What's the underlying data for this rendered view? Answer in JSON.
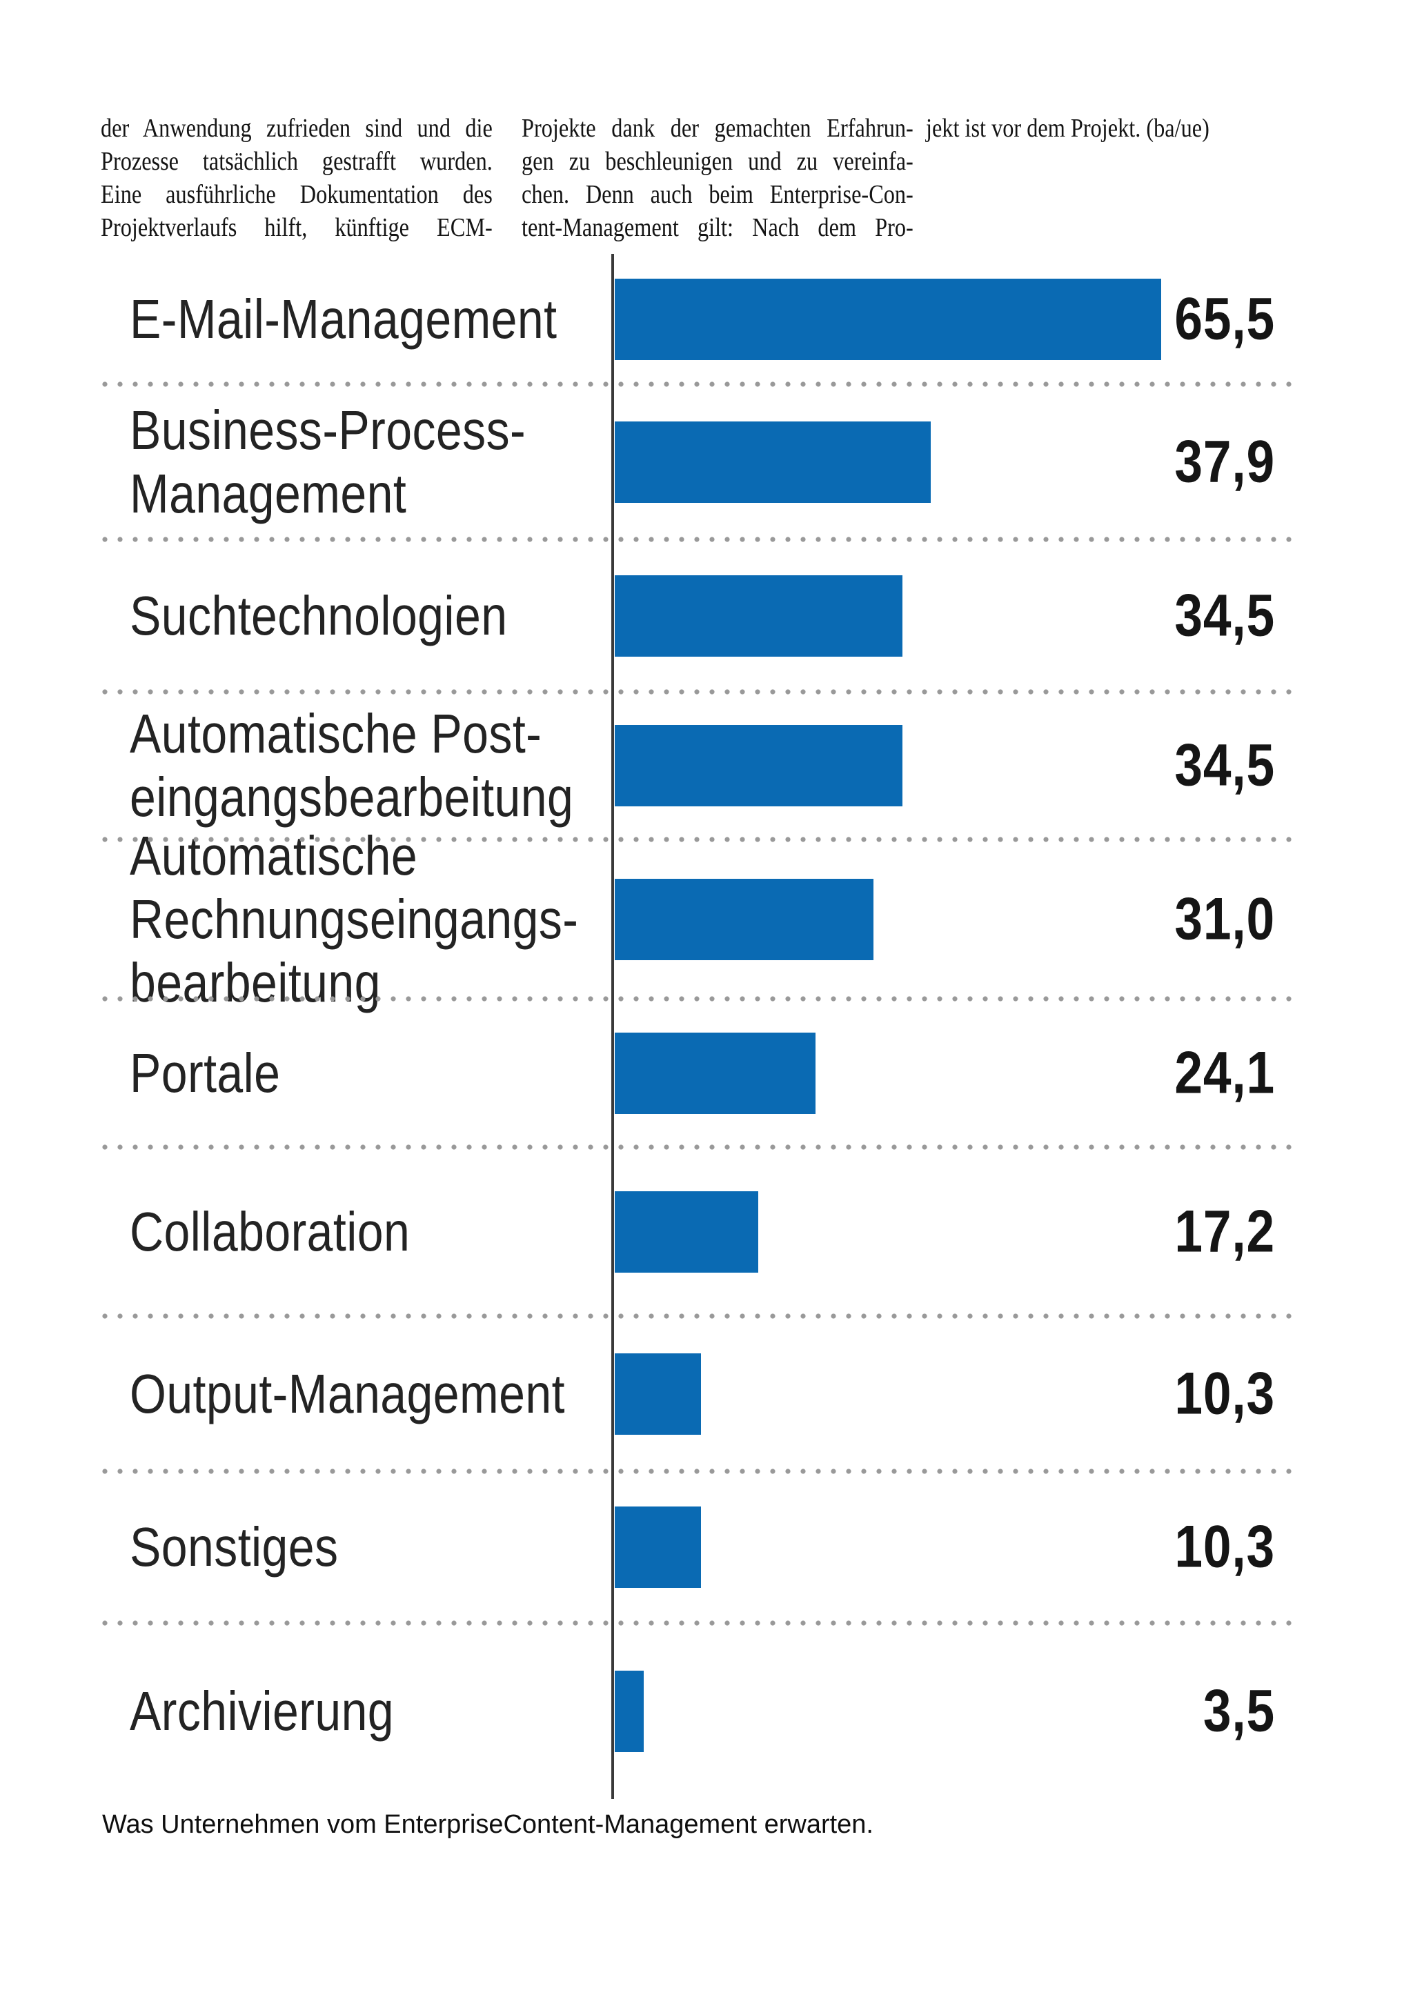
{
  "article": {
    "columns": [
      {
        "lines": [
          "der Anwendung zufrieden sind und die",
          "Prozesse tatsächlich gestrafft wurden.",
          "Eine ausführliche Dokumentation des",
          "Projektverlaufs hilft, künftige ECM-"
        ]
      },
      {
        "lines": [
          "Projekte dank der gemachten Erfahrun-",
          "gen zu beschleunigen und zu vereinfa-",
          "chen. Denn auch beim Enterprise-Con-",
          "tent-Management gilt: Nach dem Pro-"
        ]
      },
      {
        "lines": [
          "jekt ist vor dem Projekt. (ba/ue)"
        ]
      }
    ]
  },
  "chart_data": {
    "type": "bar",
    "orientation": "horizontal",
    "categories": [
      "E-Mail-Management",
      "Business-Process-Management",
      "Suchtechnologien",
      "Automatische Posteingangsbearbeitung",
      "Automatische Rechnungseingangsbearbeitung",
      "Portale",
      "Collaboration",
      "Output-Management",
      "Sonstiges",
      "Archivierung"
    ],
    "label_display": [
      "E-Mail-Management",
      "Business-Process-\nManagement",
      "Suchtechnologien",
      "Automatische Post-\neingangsbearbeitung",
      "Automatische\nRechnungseingangs-\nbearbeitung",
      "Portale",
      "Collaboration",
      "Output-Management",
      "Sonstiges",
      "Archivierung"
    ],
    "values": [
      65.5,
      37.9,
      34.5,
      34.5,
      31.0,
      24.1,
      17.2,
      10.3,
      10.3,
      3.5
    ],
    "value_labels": [
      "65,5",
      "37,9",
      "34,5",
      "34,5",
      "31,0",
      "24,1",
      "17,2",
      "10,3",
      "10,3",
      "3,5"
    ],
    "xlim": [
      0,
      65.5
    ],
    "grid": "dotted-row-separators",
    "legend": "none",
    "caption": "Was Unternehmen vom EnterpriseContent-Management erwarten.",
    "colors": {
      "bar": "#0a6ab3",
      "axis": "#3a3a3a",
      "separator_dots": "#999999",
      "text": "#151515"
    }
  }
}
